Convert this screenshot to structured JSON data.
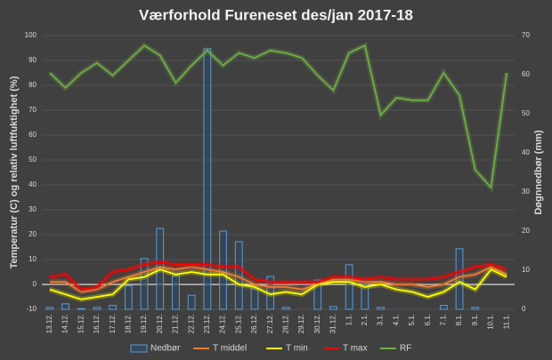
{
  "chart_data": {
    "type": "combo",
    "title": "Værforhold Fureneset des/jan 2017-18",
    "y_label": "Temperatur (C) og relativ luftfuktighet (%)",
    "y2_label": "Døgnnedbør (mm)",
    "categories": [
      "13.12.",
      "14.12.",
      "15.12.",
      "16.12.",
      "17.12.",
      "18.12.",
      "19.12.",
      "20.12.",
      "21.12.",
      "22.12.",
      "23.12.",
      "24.12.",
      "25.12.",
      "26.12.",
      "27.12.",
      "28.12.",
      "29.12.",
      "30.12.",
      "31.12.",
      "1.1.",
      "2.1.",
      "3.1.",
      "4.1.",
      "5.1.",
      "6.1.",
      "7.1.",
      "8.1.",
      "9.1.",
      "10.1.",
      "11.1."
    ],
    "ylim": [
      -10,
      100
    ],
    "yticks": [
      -10,
      0,
      10,
      20,
      30,
      40,
      50,
      60,
      70,
      80,
      90,
      100
    ],
    "y2lim": [
      0,
      70
    ],
    "y2ticks": [
      0,
      10,
      20,
      30,
      40,
      50,
      60,
      70
    ],
    "grid": true,
    "series": [
      {
        "name": "Nedbør",
        "type": "bar",
        "axis": "y2",
        "color": "#5b9bd5",
        "values": [
          0.5,
          1.4,
          0.2,
          0.5,
          1,
          6,
          13,
          20.7,
          8.6,
          3.6,
          66.6,
          20,
          17.3,
          5.2,
          8.4,
          0.5,
          0,
          7.5,
          0.7,
          11.4,
          6.4,
          0.5,
          0,
          0,
          0,
          1,
          15.5,
          0.5,
          0,
          0
        ]
      },
      {
        "name": "T middel",
        "type": "line",
        "color": "#ed7d31",
        "values": [
          1,
          1,
          -3,
          -2,
          1,
          3,
          5,
          7,
          6,
          7,
          6,
          5,
          3,
          0,
          -1,
          -1,
          -2,
          0,
          2,
          2,
          1,
          1,
          0,
          0,
          -1,
          0,
          3,
          4,
          7,
          4
        ]
      },
      {
        "name": "T min",
        "type": "line",
        "color": "#ffff00",
        "values": [
          -2,
          -4,
          -6,
          -5,
          -4,
          2,
          3,
          6,
          4,
          5,
          4,
          4,
          0,
          -1,
          -4,
          -3,
          -4,
          0,
          1,
          1,
          -1,
          0,
          -2,
          -3,
          -5,
          -3,
          1,
          -2,
          6,
          3
        ]
      },
      {
        "name": "T max",
        "type": "line",
        "color": "#ff0000",
        "values": [
          3,
          4,
          -2,
          -1,
          5,
          6,
          8,
          9,
          8,
          8,
          8,
          7,
          7,
          2,
          1,
          1,
          1,
          1,
          3,
          3,
          2,
          3,
          2,
          2,
          2,
          3,
          5,
          7,
          8,
          6
        ]
      },
      {
        "name": "RF",
        "type": "line",
        "color": "#70ad47",
        "values": [
          85,
          79,
          85,
          89,
          84,
          90,
          96,
          92,
          81,
          88,
          94,
          88,
          93,
          91,
          94,
          93,
          91,
          84,
          78,
          93,
          96,
          68,
          75,
          74,
          74,
          85,
          76,
          46,
          39,
          85
        ]
      }
    ]
  }
}
